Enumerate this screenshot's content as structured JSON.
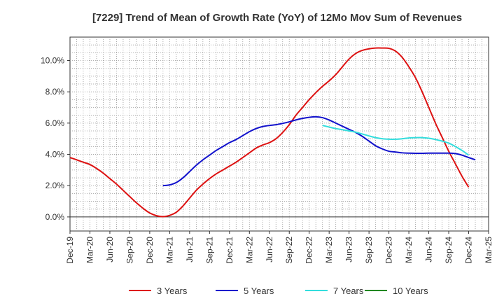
{
  "chart_data": {
    "type": "line",
    "title": "[7229]  Trend of Mean of Growth Rate (YoY) of 12Mo Mov Sum of Revenues",
    "xlabel": "",
    "ylabel": "",
    "x_tick_labels": [
      "Dec-19",
      "Mar-20",
      "Jun-20",
      "Sep-20",
      "Dec-20",
      "Mar-21",
      "Jun-21",
      "Sep-21",
      "Dec-21",
      "Mar-22",
      "Jun-22",
      "Sep-22",
      "Dec-22",
      "Mar-23",
      "Jun-23",
      "Sep-23",
      "Dec-23",
      "Mar-24",
      "Jun-24",
      "Sep-24",
      "Dec-24",
      "Mar-25"
    ],
    "y_tick_labels": [
      "0.0%",
      "2.0%",
      "4.0%",
      "6.0%",
      "8.0%",
      "10.0%"
    ],
    "y_ticks": [
      0,
      2,
      4,
      6,
      8,
      10
    ],
    "ylim": [
      -0.9,
      11.5
    ],
    "x_range_months": [
      0,
      63
    ],
    "grid": true,
    "legend_position": "bottom",
    "series": [
      {
        "name": "3 Years",
        "color": "#dd1111",
        "start_month": 0,
        "values": [
          3.8,
          3.65,
          3.5,
          3.35,
          3.1,
          2.8,
          2.45,
          2.1,
          1.7,
          1.3,
          0.9,
          0.55,
          0.25,
          0.08,
          0.02,
          0.1,
          0.3,
          0.7,
          1.2,
          1.7,
          2.1,
          2.45,
          2.75,
          3.0,
          3.25,
          3.5,
          3.8,
          4.1,
          4.4,
          4.6,
          4.75,
          5.0,
          5.4,
          5.9,
          6.5,
          7.0,
          7.5,
          7.95,
          8.35,
          8.7,
          9.1,
          9.6,
          10.1,
          10.45,
          10.65,
          10.75,
          10.8,
          10.8,
          10.78,
          10.6,
          10.2,
          9.6,
          8.9,
          8.0,
          7.0,
          6.0,
          5.1,
          4.2,
          3.4,
          2.6,
          1.9
        ]
      },
      {
        "name": "5 Years",
        "color": "#1111cc",
        "start_month": 14,
        "values": [
          2.0,
          2.05,
          2.2,
          2.5,
          2.9,
          3.3,
          3.65,
          3.95,
          4.25,
          4.5,
          4.75,
          4.95,
          5.2,
          5.45,
          5.65,
          5.78,
          5.85,
          5.9,
          5.98,
          6.08,
          6.2,
          6.3,
          6.37,
          6.4,
          6.35,
          6.2,
          6.0,
          5.8,
          5.6,
          5.4,
          5.15,
          4.85,
          4.55,
          4.35,
          4.2,
          4.15,
          4.1,
          4.08,
          4.07,
          4.07,
          4.08,
          4.08,
          4.08,
          4.08,
          4.05,
          3.95,
          3.8,
          3.65
        ]
      },
      {
        "name": "7 Years",
        "color": "#33dddd",
        "start_month": 38,
        "values": [
          5.85,
          5.75,
          5.65,
          5.58,
          5.5,
          5.42,
          5.3,
          5.18,
          5.07,
          5.0,
          4.97,
          4.97,
          5.0,
          5.05,
          5.07,
          5.07,
          5.03,
          4.95,
          4.85,
          4.72,
          4.5,
          4.25,
          3.95
        ]
      },
      {
        "name": "10 Years",
        "color": "#228822",
        "start_month": 0,
        "values": []
      }
    ]
  }
}
